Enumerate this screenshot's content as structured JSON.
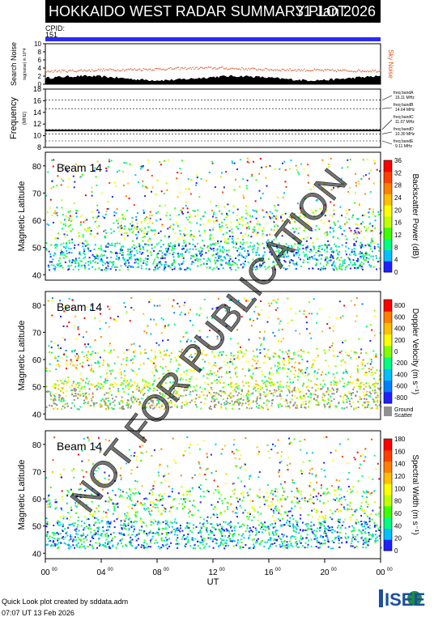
{
  "header": {
    "title": "HOKKAIDO WEST RADAR SUMMARY PLOT",
    "date": "31 Jan 2026"
  },
  "cpid": {
    "label": "CPID:",
    "value": "151"
  },
  "footer": {
    "line1": "Quick Look plot created by sddata.adm",
    "line2": "07:07 UT 13 Feb 2026"
  },
  "logo": {
    "text": "ISEE",
    "colors": [
      "#1a4fa0",
      "#1d8f3a",
      "#e0a41a"
    ]
  },
  "watermark": "NOT FOR PUBLICATION",
  "chart_data": [
    {
      "type": "area",
      "ylabel": "Search Noise",
      "ylabel_sub": "log(noise) in 10^4",
      "right_label": "Sky Noise",
      "ylim": [
        0,
        10
      ],
      "yticks": [
        "0",
        "2",
        "4",
        "6",
        "8",
        "10"
      ],
      "colors": {
        "noise": "#000000",
        "sky": "#e05020"
      },
      "series": [
        {
          "name": "Sky Noise",
          "values": [
            3.2,
            3.3,
            3.5,
            3.6,
            3.7,
            3.9,
            4.0,
            3.8,
            3.6,
            3.5,
            3.4,
            3.3,
            3.3
          ]
        }
      ]
    },
    {
      "type": "line",
      "ylabel": "Frequency",
      "ylabel_sub": "(MHz)",
      "ylim": [
        8,
        18
      ],
      "yticks": [
        "8",
        "10",
        "12",
        "14",
        "16",
        "18"
      ],
      "freq_value": 10.9,
      "bands": [
        {
          "name": "freq bandA",
          "value": "16.11 MHz",
          "mhz": 16.11
        },
        {
          "name": "freq bandB",
          "value": "14.64 MHz",
          "mhz": 14.64
        },
        {
          "name": "freq bandC",
          "value": "11.07 MHz",
          "mhz": 11.07
        },
        {
          "name": "freq bandD",
          "value": "10.30 MHz",
          "mhz": 10.3
        },
        {
          "name": "freq bandE",
          "value": "9.11 MHz",
          "mhz": 9.11
        }
      ]
    },
    {
      "type": "heatmap",
      "beam": "Beam 14",
      "ylabel": "Magnetic Latitude",
      "ylim": [
        38,
        85
      ],
      "yticks": [
        "40",
        "50",
        "60",
        "70",
        "80"
      ],
      "colorbar_label": "Backscatter Power (dB)",
      "colorbar_ticks": [
        "0",
        "4",
        "8",
        "12",
        "16",
        "20",
        "24",
        "28",
        "32",
        "36"
      ],
      "colormap": [
        "#2020ff",
        "#00c0ff",
        "#00ff80",
        "#40ff00",
        "#c0ff00",
        "#ffff00",
        "#ffc000",
        "#ff8000",
        "#ff4000",
        "#ff0000"
      ]
    },
    {
      "type": "heatmap",
      "beam": "Beam 14",
      "ylabel": "Magnetic Latitude",
      "ylim": [
        38,
        85
      ],
      "yticks": [
        "40",
        "50",
        "60",
        "70",
        "80"
      ],
      "colorbar_label": "Doppler Velocity (m s⁻¹)",
      "colorbar_ticks": [
        "800",
        "600",
        "400",
        "200",
        "0",
        "-200",
        "-400",
        "-600",
        "-800"
      ],
      "ground_scatter_label": [
        "Ground",
        "Scatter"
      ],
      "colormap": [
        "#2020ff",
        "#0080ff",
        "#00c0ff",
        "#00ff80",
        "#80ff00",
        "#ffff00",
        "#ffc000",
        "#ff8000",
        "#ff0000"
      ]
    },
    {
      "type": "heatmap",
      "beam": "Beam 14",
      "ylabel": "Magnetic Latitude",
      "ylim": [
        38,
        85
      ],
      "yticks": [
        "40",
        "50",
        "60",
        "70",
        "80"
      ],
      "colorbar_label": "Spectral Width (m s⁻¹)",
      "colorbar_ticks": [
        "0",
        "20",
        "40",
        "60",
        "80",
        "100",
        "120",
        "140",
        "160",
        "180"
      ],
      "colormap": [
        "#2020ff",
        "#00c0ff",
        "#00ff80",
        "#40ff00",
        "#c0ff00",
        "#ffff00",
        "#ffc000",
        "#ff8000",
        "#ff4000",
        "#ff0000"
      ]
    }
  ],
  "xaxis": {
    "label": "UT",
    "ticks": [
      {
        "h": "00",
        "m": "00"
      },
      {
        "h": "04",
        "m": "00"
      },
      {
        "h": "08",
        "m": "00"
      },
      {
        "h": "12",
        "m": "00"
      },
      {
        "h": "16",
        "m": "00"
      },
      {
        "h": "20",
        "m": "00"
      },
      {
        "h": "00",
        "m": "00"
      }
    ]
  }
}
